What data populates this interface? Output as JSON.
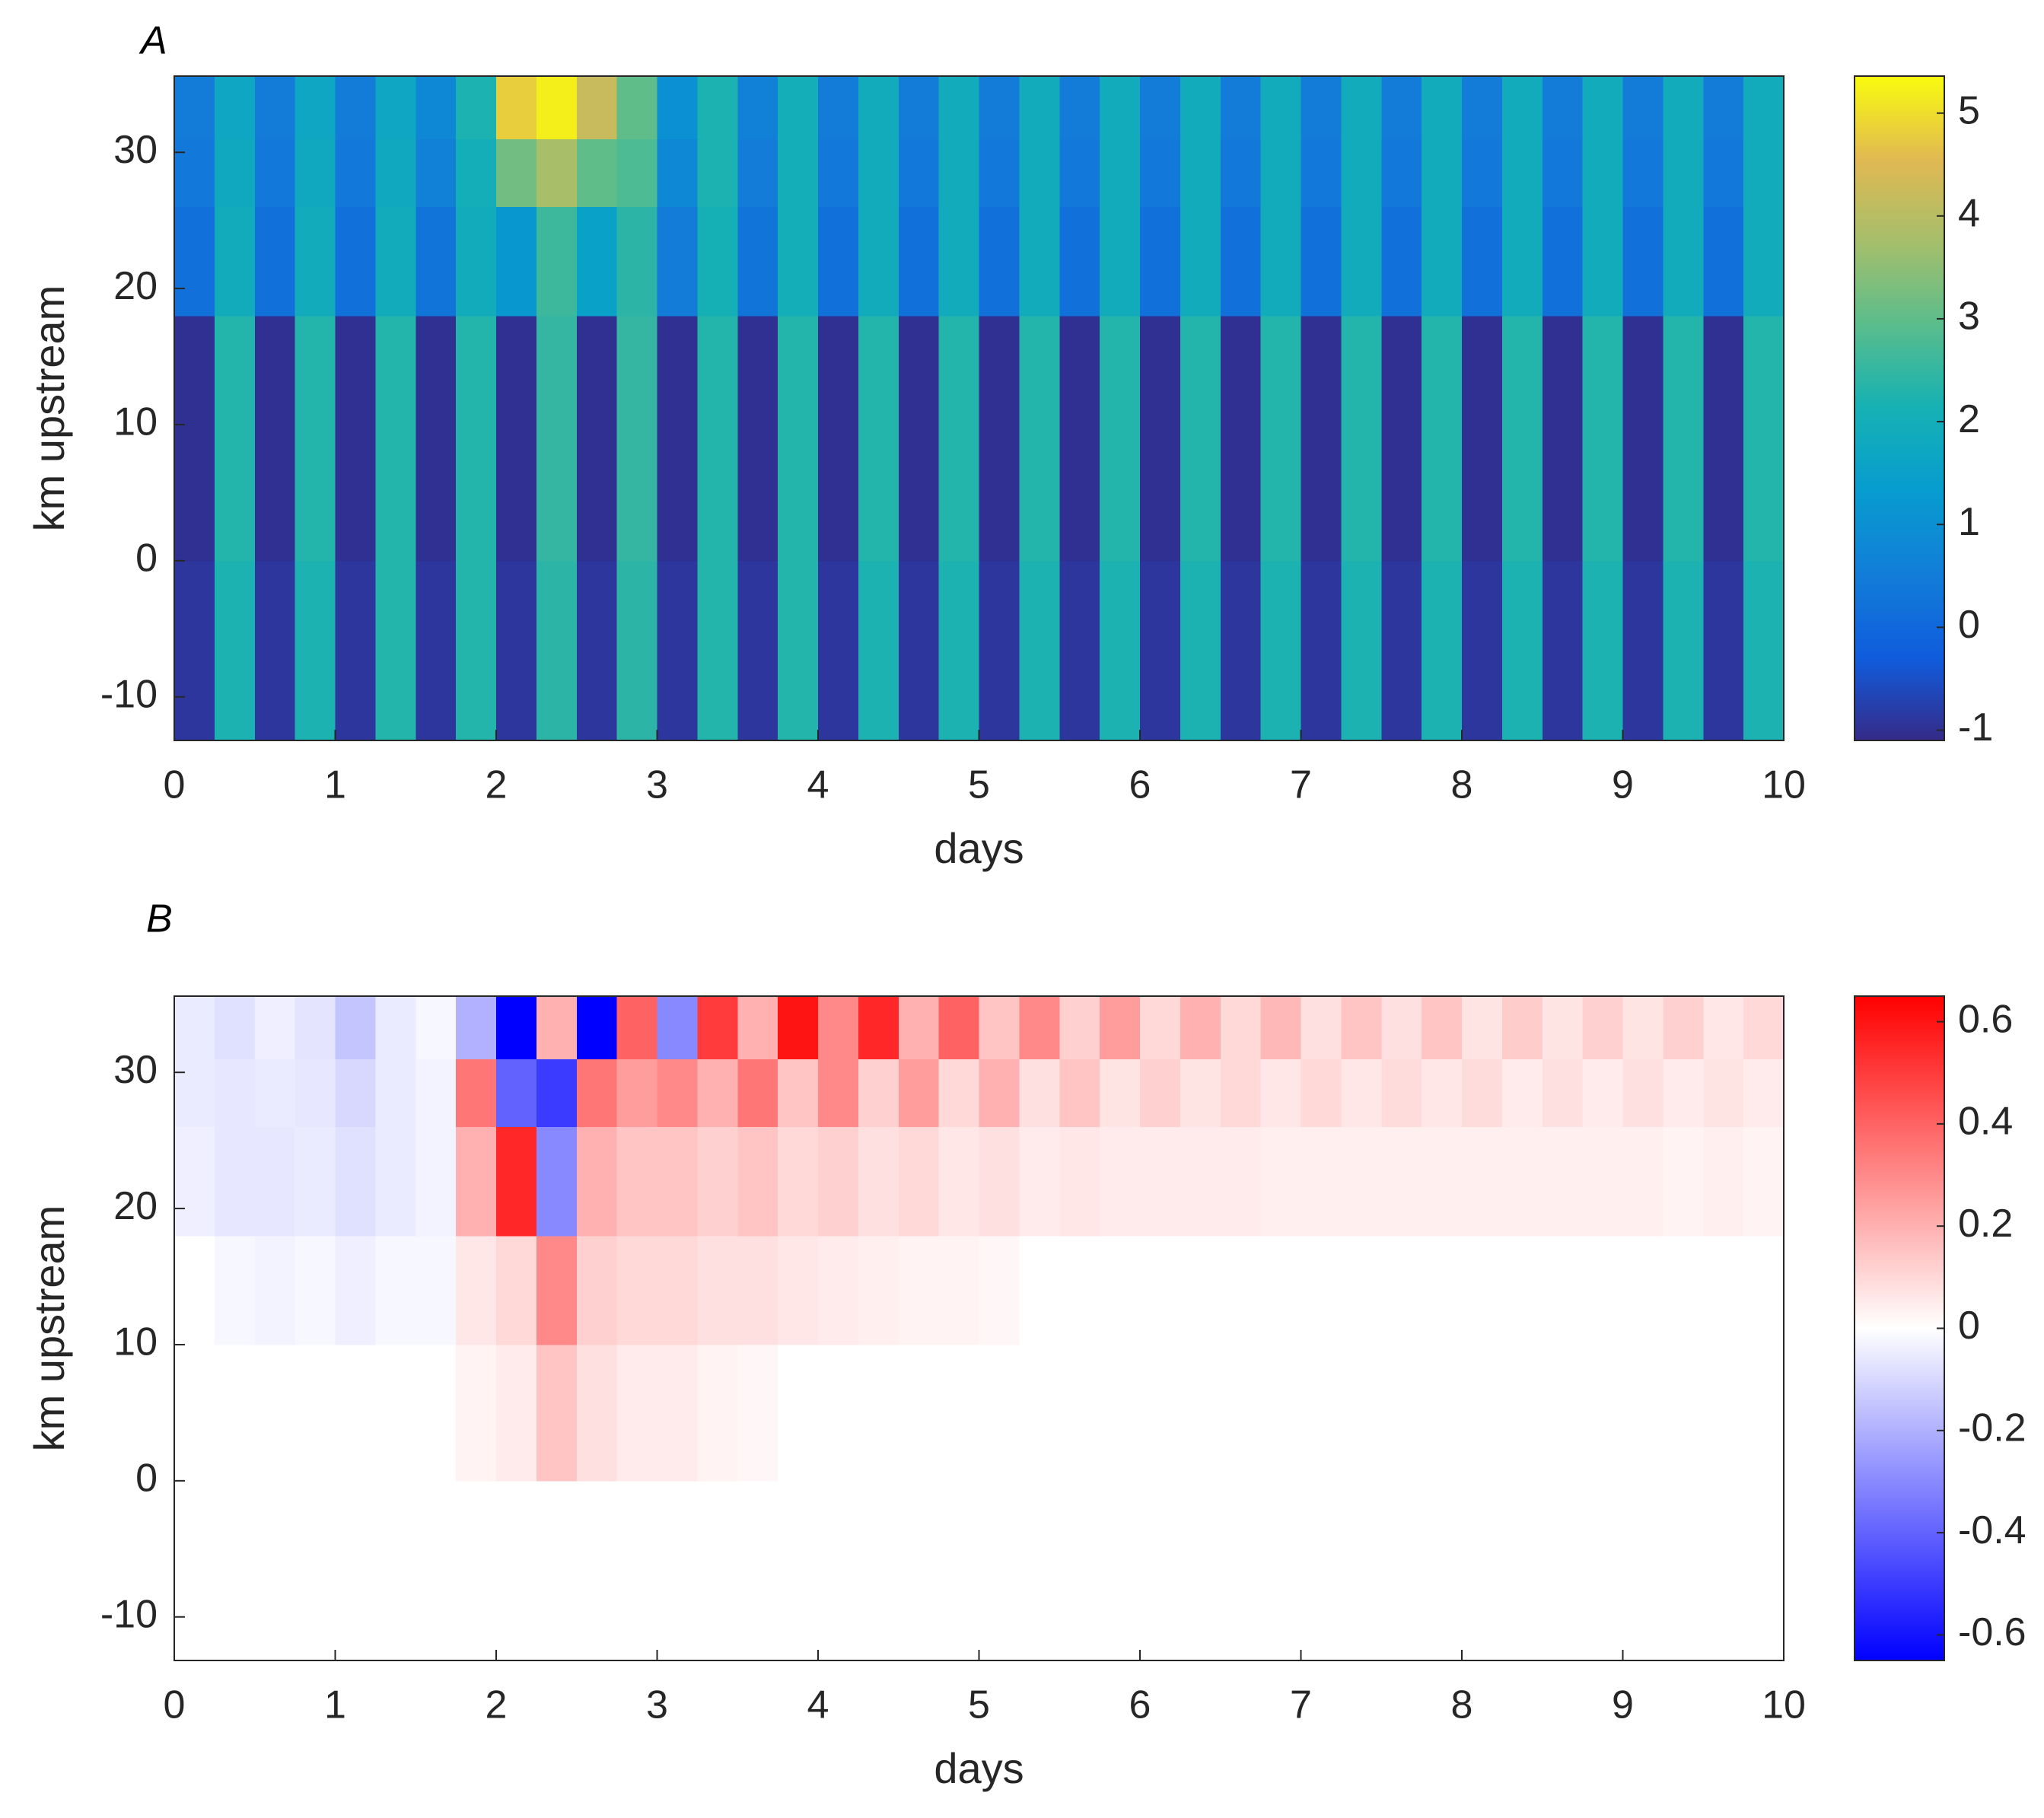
{
  "chart_data": [
    {
      "type": "heatmap",
      "panel_label": "A",
      "xlabel": "days",
      "ylabel": "km upstream",
      "xlim": [
        0,
        10
      ],
      "ylim": [
        -13.2,
        35.6
      ],
      "xticks": [
        0,
        1,
        2,
        3,
        4,
        5,
        6,
        7,
        8,
        9,
        10
      ],
      "yticks": [
        -10,
        0,
        10,
        20,
        30
      ],
      "colormap": "parula",
      "clim": [
        -1.1,
        5.36
      ],
      "cticks": [
        -1,
        0,
        1,
        2,
        3,
        4,
        5
      ],
      "xbins": [
        0,
        0.25,
        0.5,
        0.75,
        1,
        1.25,
        1.5,
        1.75,
        2,
        2.25,
        2.5,
        2.75,
        3,
        3.25,
        3.5,
        3.75,
        4,
        4.25,
        4.5,
        4.75,
        5,
        5.25,
        5.5,
        5.75,
        6,
        6.25,
        6.5,
        6.75,
        7,
        7.25,
        7.5,
        7.75,
        8,
        8.25,
        8.5,
        8.75,
        9,
        9.25,
        9.5,
        9.75,
        10
      ],
      "ybins": [
        -13.2,
        0,
        18,
        26,
        31,
        35.6
      ],
      "z": [
        [
          -0.9,
          2.2,
          -0.9,
          2.2,
          -0.9,
          2.3,
          -0.9,
          2.3,
          -0.9,
          2.4,
          -0.9,
          2.4,
          -0.9,
          2.3,
          -0.9,
          2.3,
          -0.9,
          2.2,
          -0.9,
          2.2,
          -0.9,
          2.2,
          -0.9,
          2.2,
          -0.9,
          2.2,
          -0.9,
          2.2,
          -0.9,
          2.2,
          -0.9,
          2.2,
          -0.9,
          2.2,
          -0.9,
          2.2,
          -0.9,
          2.2,
          -0.9,
          2.2
        ],
        [
          -1.0,
          2.3,
          -1.0,
          2.3,
          -1.0,
          2.3,
          -1.0,
          2.3,
          -1.0,
          2.5,
          -1.0,
          2.5,
          -1.0,
          2.3,
          -1.0,
          2.3,
          -1.0,
          2.3,
          -1.0,
          2.3,
          -1.0,
          2.3,
          -1.0,
          2.3,
          -1.0,
          2.3,
          -1.0,
          2.3,
          -1.0,
          2.3,
          -1.0,
          2.3,
          -1.0,
          2.3,
          -1.0,
          2.3,
          -1.0,
          2.3,
          -1.0,
          2.3
        ],
        [
          0.2,
          1.9,
          0.2,
          1.9,
          0.2,
          1.9,
          0.3,
          1.9,
          1.2,
          2.6,
          1.5,
          2.4,
          0.5,
          2.1,
          0.3,
          2.0,
          0.2,
          1.9,
          0.2,
          1.9,
          0.2,
          1.9,
          0.2,
          1.9,
          0.2,
          1.9,
          0.2,
          1.9,
          0.2,
          1.9,
          0.2,
          1.9,
          0.2,
          1.9,
          0.2,
          1.9,
          0.2,
          1.9,
          0.2,
          1.9
        ],
        [
          0.4,
          1.8,
          0.4,
          1.8,
          0.4,
          1.8,
          0.6,
          2.0,
          3.2,
          3.8,
          3.0,
          2.8,
          0.8,
          2.2,
          0.5,
          2.0,
          0.4,
          1.9,
          0.4,
          1.9,
          0.4,
          1.9,
          0.4,
          1.9,
          0.4,
          1.9,
          0.4,
          1.9,
          0.4,
          1.9,
          0.4,
          1.9,
          0.4,
          1.9,
          0.4,
          1.9,
          0.4,
          1.9,
          0.4,
          1.9
        ],
        [
          0.5,
          1.7,
          0.5,
          1.7,
          0.5,
          1.7,
          0.8,
          2.2,
          4.8,
          5.2,
          4.2,
          3.0,
          1.0,
          2.2,
          0.6,
          2.0,
          0.5,
          1.9,
          0.5,
          1.9,
          0.5,
          1.9,
          0.5,
          1.9,
          0.5,
          1.9,
          0.5,
          1.9,
          0.5,
          1.9,
          0.5,
          1.9,
          0.5,
          1.9,
          0.5,
          1.9,
          0.5,
          1.9,
          0.5,
          1.9
        ]
      ]
    },
    {
      "type": "heatmap",
      "panel_label": "B",
      "xlabel": "days",
      "ylabel": "km upstream",
      "xlim": [
        0,
        10
      ],
      "ylim": [
        -13.2,
        35.6
      ],
      "xticks": [
        0,
        1,
        2,
        3,
        4,
        5,
        6,
        7,
        8,
        9,
        10
      ],
      "yticks": [
        -10,
        0,
        10,
        20,
        30
      ],
      "colormap": "bwr",
      "clim": [
        -0.65,
        0.65
      ],
      "cticks": [
        -0.6,
        -0.4,
        -0.2,
        0,
        0.2,
        0.4,
        0.6
      ],
      "xbins": [
        0,
        0.25,
        0.5,
        0.75,
        1,
        1.25,
        1.5,
        1.75,
        2,
        2.25,
        2.5,
        2.75,
        3,
        3.25,
        3.5,
        3.75,
        4,
        4.25,
        4.5,
        4.75,
        5,
        5.25,
        5.5,
        5.75,
        6,
        6.25,
        6.5,
        6.75,
        7,
        7.25,
        7.5,
        7.75,
        8,
        8.25,
        8.5,
        8.75,
        9,
        9.25,
        9.5,
        9.75,
        10
      ],
      "ybins": [
        -13.2,
        0,
        10,
        18,
        26,
        31,
        35.6
      ],
      "z": [
        [
          0,
          0,
          0,
          0,
          0,
          0,
          0,
          0,
          0,
          0,
          0,
          0,
          0,
          0,
          0,
          0,
          0,
          0,
          0,
          0,
          0,
          0,
          0,
          0,
          0,
          0,
          0,
          0,
          0,
          0,
          0,
          0,
          0,
          0,
          0,
          0,
          0,
          0,
          0,
          0
        ],
        [
          0,
          0,
          0,
          0,
          0,
          0,
          0,
          0.03,
          0.05,
          0.15,
          0.08,
          0.05,
          0.05,
          0.03,
          0.02,
          0,
          0,
          0,
          0,
          0,
          0,
          0,
          0,
          0,
          0,
          0,
          0,
          0,
          0,
          0,
          0,
          0,
          0,
          0,
          0,
          0,
          0,
          0,
          0,
          0
        ],
        [
          0,
          -0.02,
          -0.03,
          -0.02,
          -0.04,
          -0.02,
          -0.02,
          0.06,
          0.1,
          0.3,
          0.12,
          0.1,
          0.1,
          0.08,
          0.08,
          0.06,
          0.05,
          0.04,
          0.03,
          0.03,
          0.02,
          0,
          0,
          0,
          0,
          0,
          0,
          0,
          0,
          0,
          0,
          0,
          0,
          0,
          0,
          0,
          0,
          0,
          0,
          0
        ],
        [
          -0.04,
          -0.06,
          -0.06,
          -0.05,
          -0.08,
          -0.05,
          -0.03,
          0.2,
          0.55,
          -0.3,
          0.2,
          0.15,
          0.15,
          0.12,
          0.15,
          0.1,
          0.12,
          0.08,
          0.1,
          0.06,
          0.08,
          0.05,
          0.06,
          0.05,
          0.05,
          0.05,
          0.05,
          0.04,
          0.04,
          0.04,
          0.04,
          0.04,
          0.04,
          0.04,
          0.04,
          0.04,
          0.04,
          0.03,
          0.04,
          0.03
        ],
        [
          -0.05,
          -0.06,
          -0.05,
          -0.06,
          -0.1,
          -0.05,
          -0.03,
          0.35,
          -0.4,
          -0.5,
          0.35,
          0.25,
          0.3,
          0.2,
          0.35,
          0.15,
          0.3,
          0.12,
          0.25,
          0.1,
          0.2,
          0.08,
          0.15,
          0.07,
          0.12,
          0.07,
          0.1,
          0.06,
          0.1,
          0.06,
          0.09,
          0.06,
          0.09,
          0.05,
          0.08,
          0.05,
          0.08,
          0.05,
          0.07,
          0.05
        ],
        [
          -0.05,
          -0.08,
          -0.04,
          -0.07,
          -0.15,
          -0.05,
          -0.02,
          -0.2,
          -0.65,
          0.2,
          -0.65,
          0.4,
          -0.3,
          0.5,
          0.2,
          0.6,
          0.3,
          0.55,
          0.2,
          0.4,
          0.15,
          0.3,
          0.12,
          0.25,
          0.1,
          0.2,
          0.1,
          0.18,
          0.08,
          0.15,
          0.08,
          0.15,
          0.07,
          0.13,
          0.07,
          0.12,
          0.07,
          0.12,
          0.06,
          0.1
        ]
      ]
    }
  ]
}
